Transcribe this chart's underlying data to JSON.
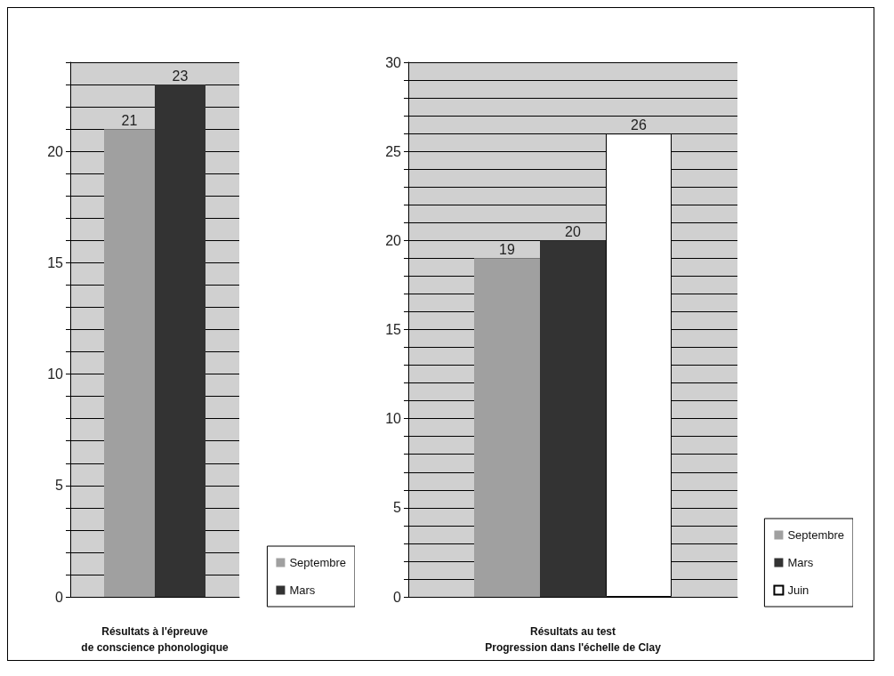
{
  "chart_data": [
    {
      "type": "bar",
      "xlabel": "Résultats à l'épreuve\nde conscience phonologique",
      "categories": [
        null
      ],
      "series": [
        {
          "name": "Septembre",
          "color": "#a0a0a0",
          "values": [
            21
          ]
        },
        {
          "name": "Mars",
          "color": "#333333",
          "values": [
            23
          ]
        }
      ],
      "ylim": [
        0,
        24
      ],
      "yticks": [
        0,
        {
          "value": 1,
          "label": null
        },
        {
          "value": 2,
          "label": null
        },
        {
          "value": 3,
          "label": null
        },
        {
          "value": 4,
          "label": null
        },
        5,
        {
          "value": 6,
          "label": null
        },
        {
          "value": 7,
          "label": null
        },
        {
          "value": 8,
          "label": null
        },
        {
          "value": 9,
          "label": null
        },
        10,
        {
          "value": 11,
          "label": null
        },
        {
          "value": 12,
          "label": null
        },
        {
          "value": 13,
          "label": null
        },
        {
          "value": 14,
          "label": null
        },
        15,
        {
          "value": 16,
          "label": null
        },
        {
          "value": 17,
          "label": null
        },
        {
          "value": 18,
          "label": null
        },
        {
          "value": 19,
          "label": null
        },
        20,
        {
          "value": 21,
          "label": null
        },
        {
          "value": 22,
          "label": null
        },
        {
          "value": 23,
          "label": null
        },
        {
          "value": 24,
          "label": null
        }
      ],
      "grid": "y",
      "data_labels": true,
      "legend": "bottom right"
    },
    {
      "type": "bar",
      "xlabel": "Résultats au test\nProgression dans l'échelle de Clay",
      "categories": [
        null
      ],
      "series": [
        {
          "name": "Septembre",
          "color": "#a0a0a0",
          "values": [
            19
          ]
        },
        {
          "name": "Mars",
          "color": "#333333",
          "values": [
            20
          ]
        },
        {
          "name": "Juin",
          "color": "#ffffff",
          "values": [
            26
          ]
        }
      ],
      "ylim": [
        0,
        30
      ],
      "yticks": [
        0,
        {
          "value": 1,
          "label": null
        },
        {
          "value": 2,
          "label": null
        },
        {
          "value": 3,
          "label": null
        },
        {
          "value": 4,
          "label": null
        },
        5,
        {
          "value": 6,
          "label": null
        },
        {
          "value": 7,
          "label": null
        },
        {
          "value": 8,
          "label": null
        },
        {
          "value": 9,
          "label": null
        },
        10,
        {
          "value": 11,
          "label": null
        },
        {
          "value": 12,
          "label": null
        },
        {
          "value": 13,
          "label": null
        },
        {
          "value": 14,
          "label": null
        },
        15,
        {
          "value": 16,
          "label": null
        },
        {
          "value": 17,
          "label": null
        },
        {
          "value": 18,
          "label": null
        },
        {
          "value": 19,
          "label": null
        },
        20,
        {
          "value": 21,
          "label": null
        },
        {
          "value": 22,
          "label": null
        },
        {
          "value": 23,
          "label": null
        },
        {
          "value": 24,
          "label": null
        },
        25,
        {
          "value": 26,
          "label": null
        },
        {
          "value": 27,
          "label": null
        },
        {
          "value": 28,
          "label": null
        },
        {
          "value": 29,
          "label": null
        },
        30
      ],
      "grid": "y",
      "data_labels": true,
      "legend": "bottom right"
    }
  ]
}
